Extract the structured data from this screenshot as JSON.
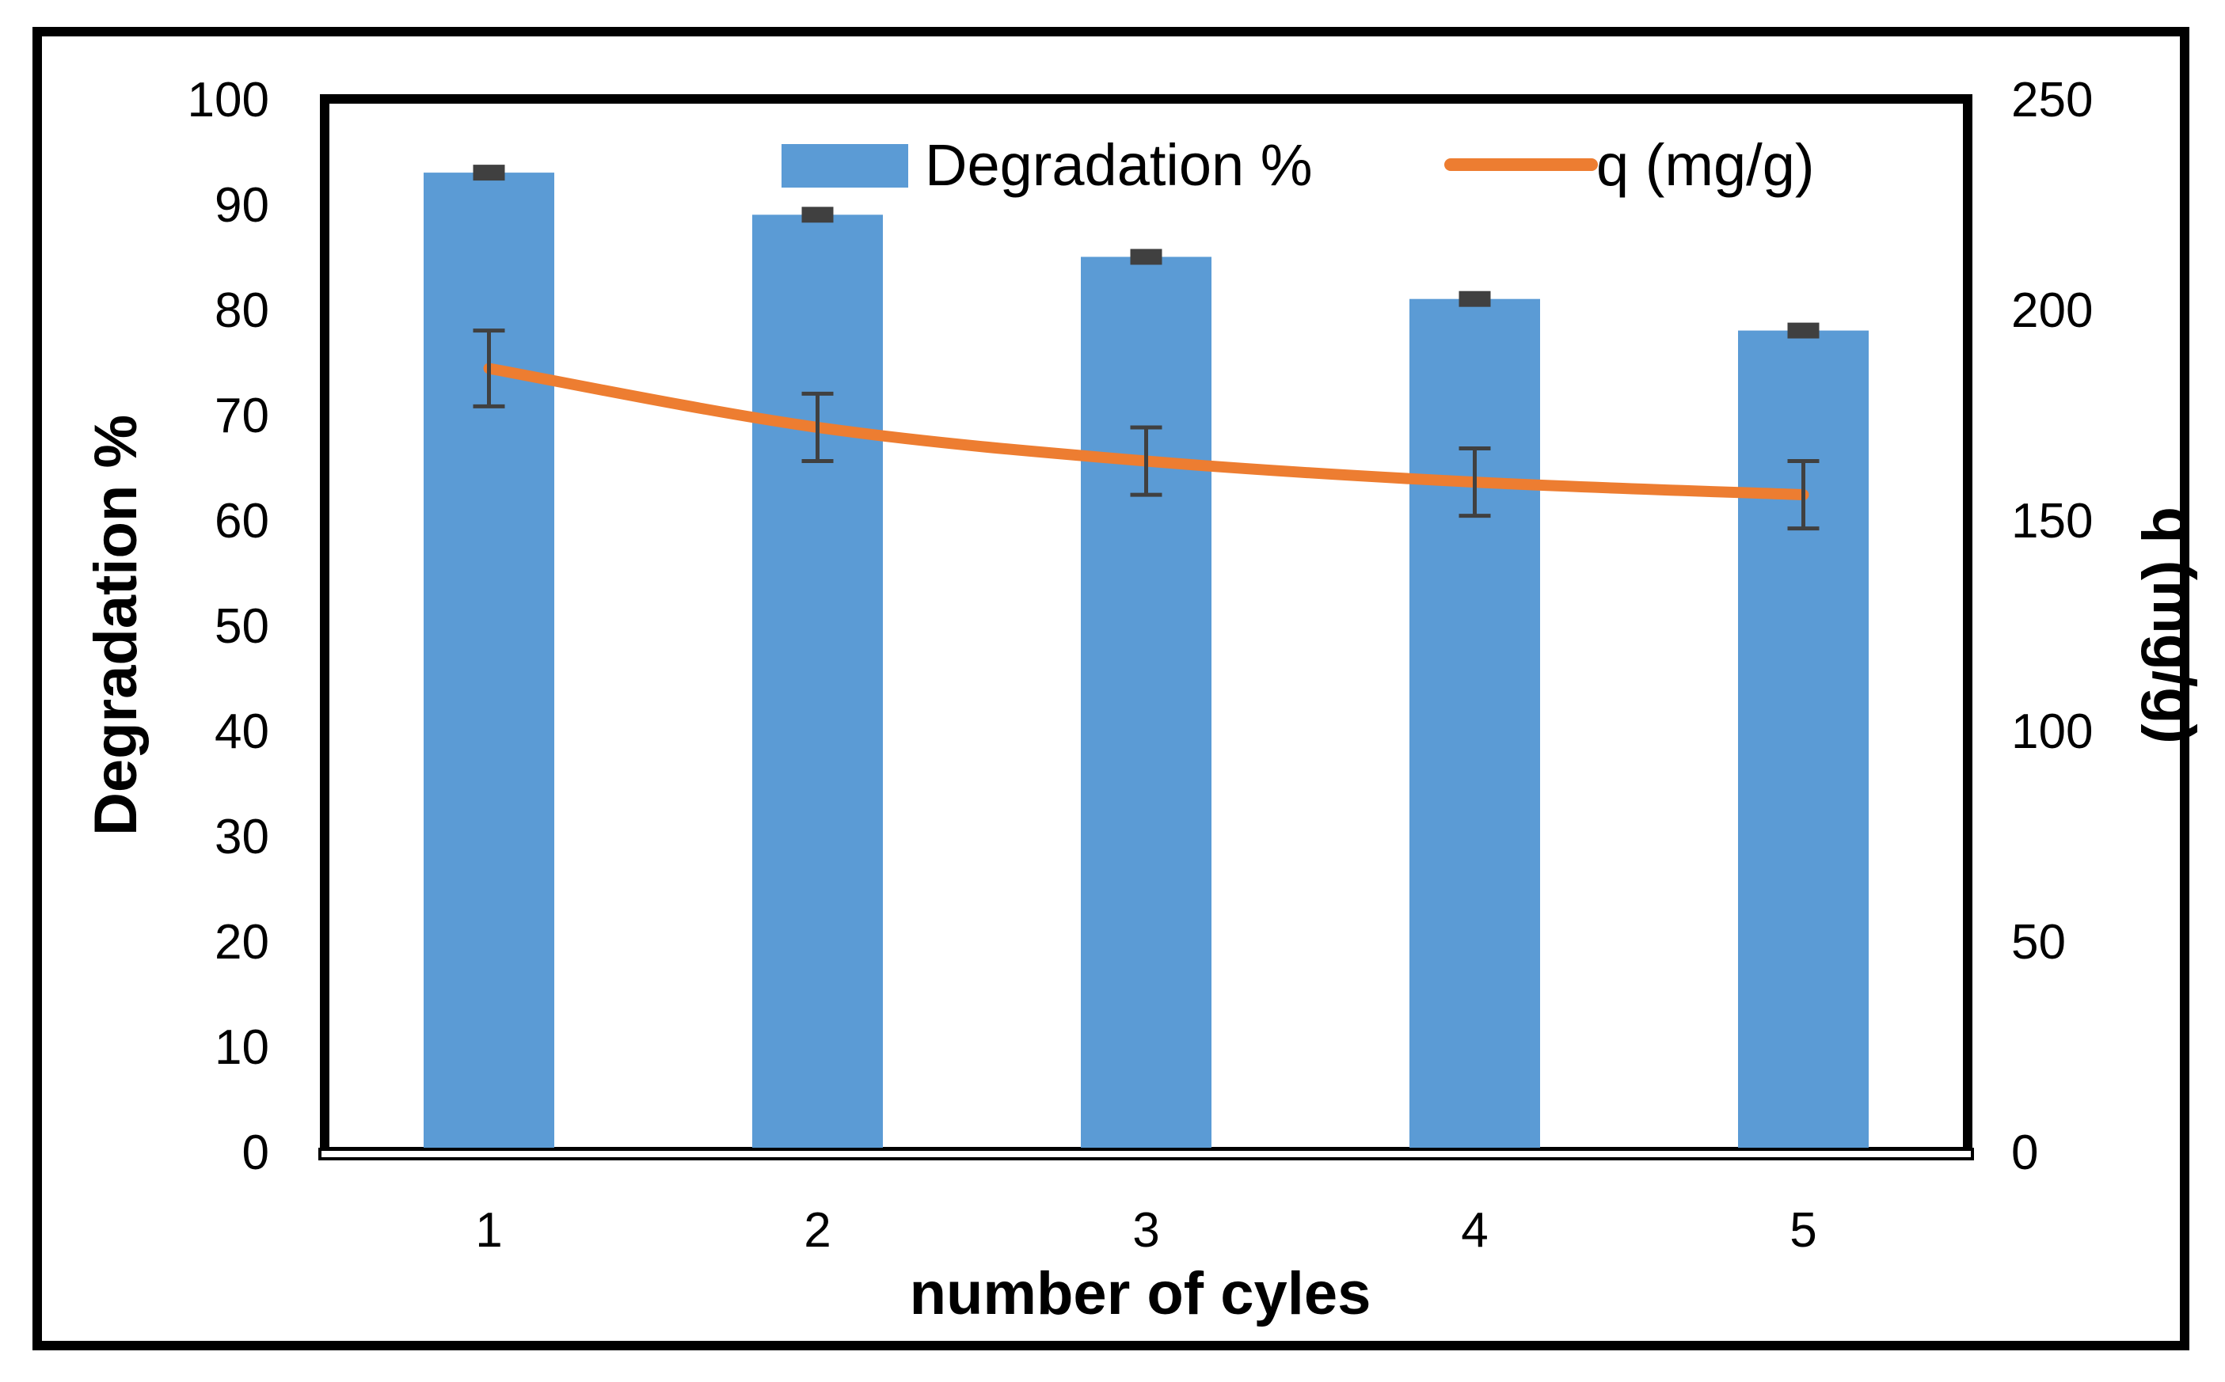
{
  "chart_data": {
    "type": "bar",
    "categories": [
      "1",
      "2",
      "3",
      "4",
      "5"
    ],
    "series": [
      {
        "name": "Degradation %",
        "kind": "bar",
        "axis": "left",
        "values": [
          93,
          89,
          85,
          81,
          78
        ],
        "errors": [
          0.6,
          0.6,
          0.6,
          0.6,
          0.6
        ],
        "color": "#5B9BD5"
      },
      {
        "name": "q (mg/g)",
        "kind": "line",
        "axis": "right",
        "values": [
          186,
          172,
          164,
          159,
          156
        ],
        "errors": [
          9,
          8,
          8,
          8,
          8
        ],
        "color": "#ED7D31"
      }
    ],
    "xlabel": "number of cyles",
    "ylabel": "Degradation %",
    "y2label": "q (mg/g)",
    "ylim": [
      0,
      100
    ],
    "y2lim": [
      0,
      250
    ],
    "yticks": [
      "0",
      "10",
      "20",
      "30",
      "40",
      "50",
      "60",
      "70",
      "80",
      "90",
      "100"
    ],
    "y2ticks": [
      "0",
      "50",
      "100",
      "150",
      "200",
      "250"
    ],
    "legend_position": "top-right",
    "grid": false,
    "colors": {
      "errorbar": "#404040",
      "axis": "#000000",
      "frame": "#000000"
    }
  }
}
